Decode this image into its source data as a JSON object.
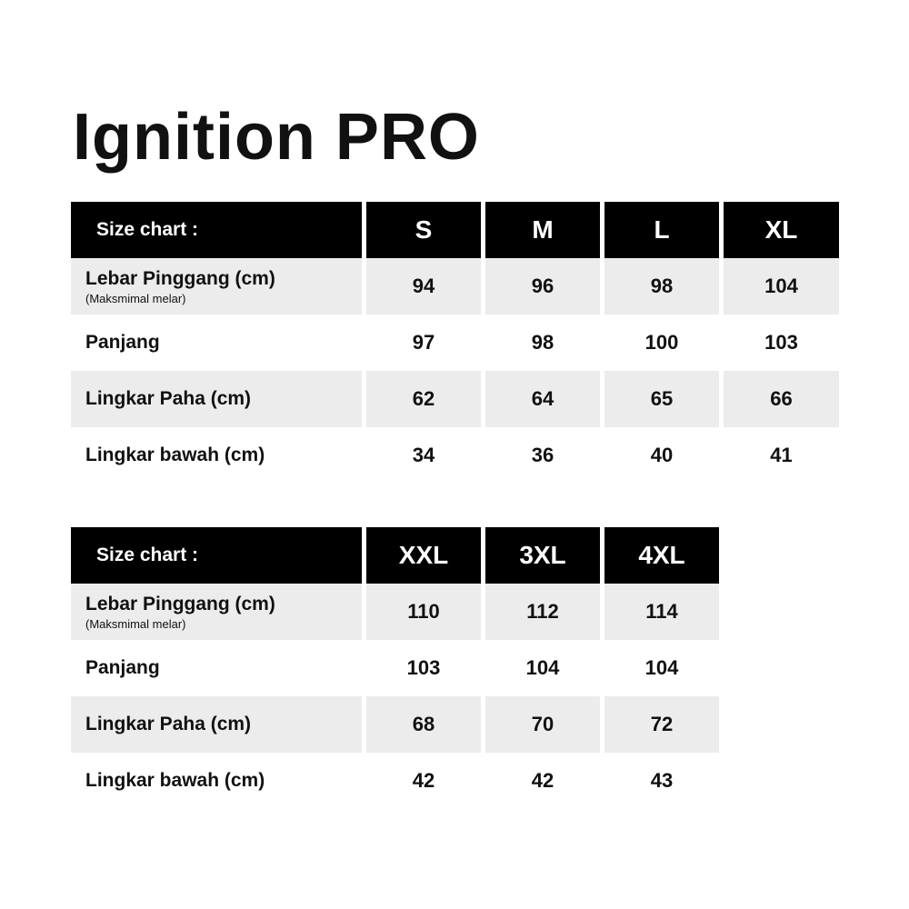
{
  "title": "Ignition PRO",
  "table1": {
    "header_label": "Size chart :",
    "sizes": [
      "S",
      "M",
      "L",
      "XL"
    ],
    "rows": [
      {
        "label": "Lebar Pinggang (cm)",
        "sublabel": "(Maksmimal melar)",
        "values": [
          "94",
          "96",
          "98",
          "104"
        ]
      },
      {
        "label": "Panjang",
        "sublabel": "",
        "values": [
          "97",
          "98",
          "100",
          "103"
        ]
      },
      {
        "label": "Lingkar Paha (cm)",
        "sublabel": "",
        "values": [
          "62",
          "64",
          "65",
          "66"
        ]
      },
      {
        "label": "Lingkar bawah (cm)",
        "sublabel": "",
        "values": [
          "34",
          "36",
          "40",
          "41"
        ]
      }
    ]
  },
  "table2": {
    "header_label": "Size chart :",
    "sizes": [
      "XXL",
      "3XL",
      "4XL"
    ],
    "rows": [
      {
        "label": "Lebar Pinggang (cm)",
        "sublabel": "(Maksmimal melar)",
        "values": [
          "110",
          "112",
          "114"
        ]
      },
      {
        "label": "Panjang",
        "sublabel": "",
        "values": [
          "103",
          "104",
          "104"
        ]
      },
      {
        "label": "Lingkar Paha (cm)",
        "sublabel": "",
        "values": [
          "68",
          "70",
          "72"
        ]
      },
      {
        "label": "Lingkar bawah (cm)",
        "sublabel": "",
        "values": [
          "42",
          "42",
          "43"
        ]
      }
    ]
  },
  "colors": {
    "header_bg": "#000000",
    "header_text": "#ffffff",
    "shaded_row": "#ececec",
    "text": "#111111"
  }
}
